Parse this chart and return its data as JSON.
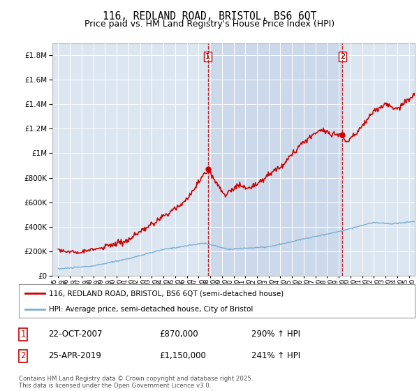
{
  "title": "116, REDLAND ROAD, BRISTOL, BS6 6QT",
  "subtitle": "Price paid vs. HM Land Registry's House Price Index (HPI)",
  "red_label": "116, REDLAND ROAD, BRISTOL, BS6 6QT (semi-detached house)",
  "blue_label": "HPI: Average price, semi-detached house, City of Bristol",
  "annotation1_box": "1",
  "annotation1_date": "22-OCT-2007",
  "annotation1_price": "£870,000",
  "annotation1_hpi": "290% ↑ HPI",
  "annotation2_box": "2",
  "annotation2_date": "25-APR-2019",
  "annotation2_price": "£1,150,000",
  "annotation2_hpi": "241% ↑ HPI",
  "footnote": "Contains HM Land Registry data © Crown copyright and database right 2025.\nThis data is licensed under the Open Government Licence v3.0.",
  "vline1_x": 2007.8,
  "vline2_x": 2019.3,
  "point1_x": 2007.8,
  "point1_y": 870000,
  "point2_x": 2019.3,
  "point2_y": 1150000,
  "ylim": [
    0,
    1900000
  ],
  "xlim": [
    1994.5,
    2025.5
  ],
  "shade_color": "#ccd9eb",
  "background_color": "#dce6f1",
  "plot_bg": "#dce6f1",
  "red_color": "#cc0000",
  "blue_color": "#7bafd4",
  "grid_color": "#ffffff",
  "title_fontsize": 11,
  "subtitle_fontsize": 9.5,
  "xtick_years": [
    1995,
    1996,
    1997,
    1998,
    1999,
    2000,
    2001,
    2002,
    2003,
    2004,
    2005,
    2006,
    2007,
    2008,
    2009,
    2010,
    2011,
    2012,
    2013,
    2014,
    2015,
    2016,
    2017,
    2018,
    2019,
    2020,
    2021,
    2022,
    2023,
    2024,
    2025
  ],
  "yticks": [
    0,
    200000,
    400000,
    600000,
    800000,
    1000000,
    1200000,
    1400000,
    1600000,
    1800000
  ]
}
